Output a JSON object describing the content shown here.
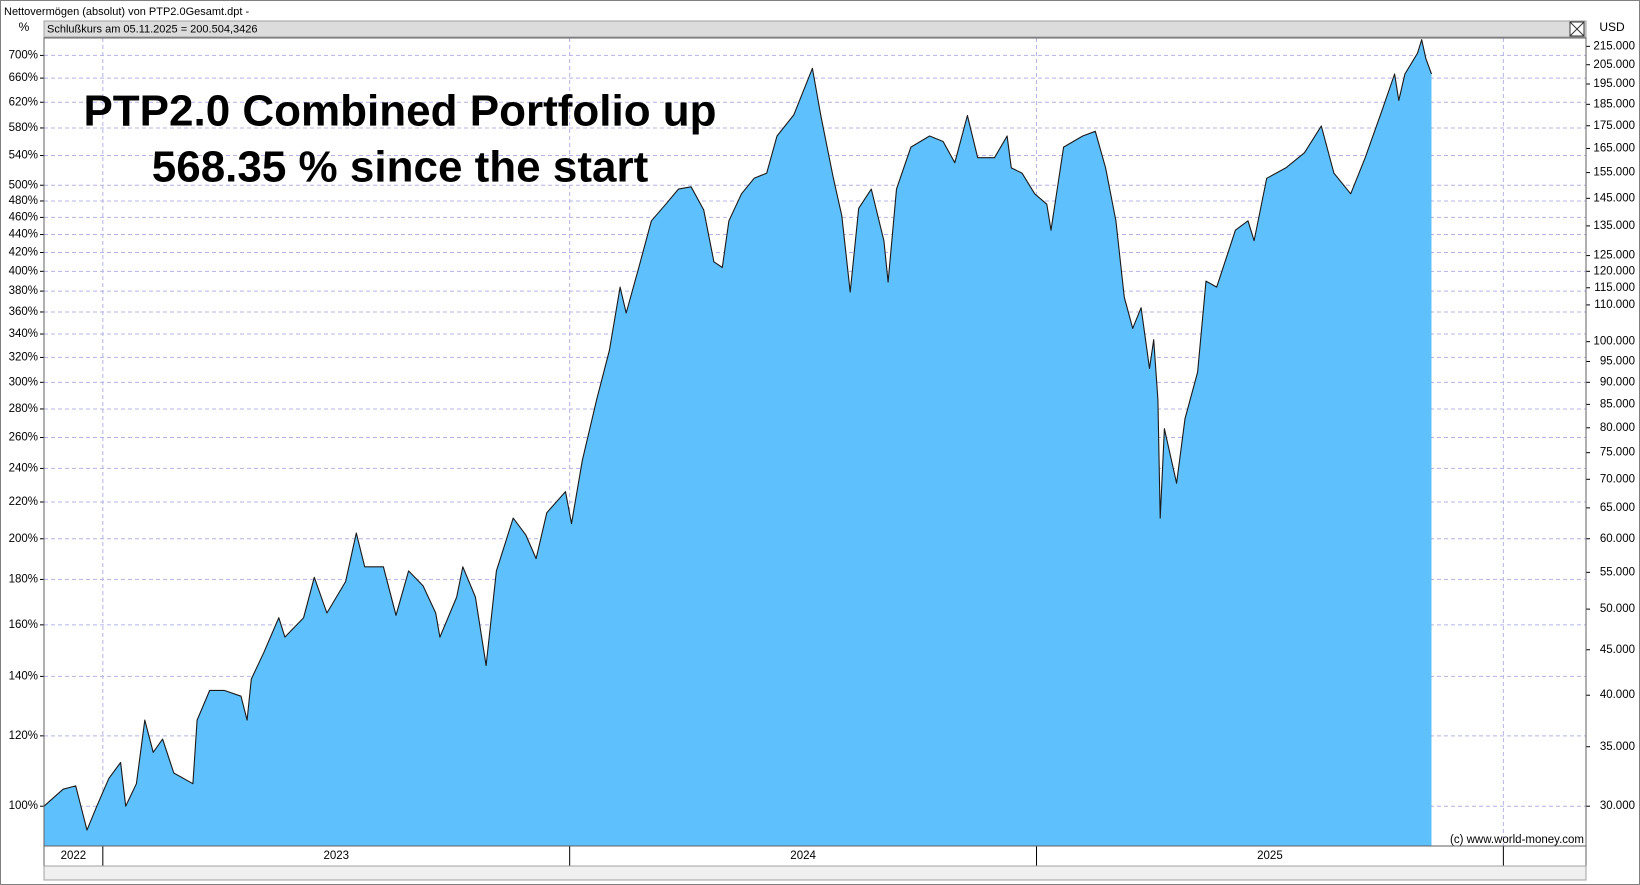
{
  "chart_data": {
    "type": "area",
    "header": "Nettovermögen (absolut) von PTP2.0Gesamt.dpt -",
    "subtitle": "Schlußkurs am 05.11.2025 = 200.504,3426",
    "title_lines": [
      "PTP2.0 Combined Portfolio up",
      "568.35 % since the start"
    ],
    "ylabel": "%",
    "y2label": "USD",
    "credit": "(c) www.world-money.com",
    "log_scale": true,
    "grid": true,
    "fill_color": "#5ec0fc",
    "line_color": "#1a1a1a",
    "xlim": [
      2022.874,
      2026.177
    ],
    "xticks": [
      2023,
      2024,
      2025,
      2026
    ],
    "year_labels": [
      "2022",
      "2023",
      "2024",
      "2025"
    ],
    "ylim": [
      90.2,
      732.3
    ],
    "yticks": [
      {
        "value": 100,
        "label": "100%"
      },
      {
        "value": 120,
        "label": "120%"
      },
      {
        "value": 140,
        "label": "140%"
      },
      {
        "value": 160,
        "label": "160%"
      },
      {
        "value": 180,
        "label": "180%"
      },
      {
        "value": 200,
        "label": "200%"
      },
      {
        "value": 220,
        "label": "220%"
      },
      {
        "value": 240,
        "label": "240%"
      },
      {
        "value": 260,
        "label": "260%"
      },
      {
        "value": 280,
        "label": "280%"
      },
      {
        "value": 300,
        "label": "300%"
      },
      {
        "value": 320,
        "label": "320%"
      },
      {
        "value": 340,
        "label": "340%"
      },
      {
        "value": 360,
        "label": "360%"
      },
      {
        "value": 380,
        "label": "380%"
      },
      {
        "value": 400,
        "label": "400%"
      },
      {
        "value": 420,
        "label": "420%"
      },
      {
        "value": 440,
        "label": "440%"
      },
      {
        "value": 460,
        "label": "460%"
      },
      {
        "value": 480,
        "label": "480%"
      },
      {
        "value": 500,
        "label": "500%"
      },
      {
        "value": 540,
        "label": "540%"
      },
      {
        "value": 580,
        "label": "580%"
      },
      {
        "value": 620,
        "label": "620%"
      },
      {
        "value": 660,
        "label": "660%"
      },
      {
        "value": 700,
        "label": "700%"
      }
    ],
    "y2lim": [
      27060,
      219700
    ],
    "y2ticks": [
      {
        "value": 30000,
        "label": "30.000"
      },
      {
        "value": 35000,
        "label": "35.000"
      },
      {
        "value": 40000,
        "label": "40.000"
      },
      {
        "value": 45000,
        "label": "45.000"
      },
      {
        "value": 50000,
        "label": "50.000"
      },
      {
        "value": 55000,
        "label": "55.000"
      },
      {
        "value": 60000,
        "label": "60.000"
      },
      {
        "value": 65000,
        "label": "65.000"
      },
      {
        "value": 70000,
        "label": "70.000"
      },
      {
        "value": 75000,
        "label": "75.000"
      },
      {
        "value": 80000,
        "label": "80.000"
      },
      {
        "value": 85000,
        "label": "85.000"
      },
      {
        "value": 90000,
        "label": "90.000"
      },
      {
        "value": 95000,
        "label": "95.000"
      },
      {
        "value": 100000,
        "label": "100.000"
      },
      {
        "value": 110000,
        "label": "110.000"
      },
      {
        "value": 115000,
        "label": "115.000"
      },
      {
        "value": 120000,
        "label": "120.000"
      },
      {
        "value": 125000,
        "label": "125.000"
      },
      {
        "value": 135000,
        "label": "135.000"
      },
      {
        "value": 145000,
        "label": "145.000"
      },
      {
        "value": 155000,
        "label": "155.000"
      },
      {
        "value": 165000,
        "label": "165.000"
      },
      {
        "value": 175000,
        "label": "175.000"
      },
      {
        "value": 185000,
        "label": "185.000"
      },
      {
        "value": 195000,
        "label": "195.000"
      },
      {
        "value": 205000,
        "label": "205.000"
      },
      {
        "value": 215000,
        "label": "215.000"
      }
    ],
    "x": [
      2022.874,
      2022.915,
      2022.942,
      2022.966,
      2022.987,
      2023.013,
      2023.038,
      2023.049,
      2023.072,
      2023.09,
      2023.108,
      2023.128,
      2023.152,
      2023.193,
      2023.202,
      2023.229,
      2023.26,
      2023.296,
      2023.309,
      2023.318,
      2023.345,
      2023.377,
      2023.39,
      2023.43,
      2023.453,
      2023.48,
      2023.52,
      2023.543,
      2023.561,
      2023.578,
      2023.601,
      2023.628,
      2023.655,
      2023.686,
      2023.713,
      2023.722,
      2023.758,
      2023.771,
      2023.798,
      2023.821,
      2023.843,
      2023.879,
      2023.906,
      2023.928,
      2023.951,
      2023.991,
      2024.004,
      2024.027,
      2024.058,
      2024.085,
      2024.108,
      2024.121,
      2024.148,
      2024.175,
      2024.206,
      2024.233,
      2024.26,
      2024.287,
      2024.309,
      2024.327,
      2024.341,
      2024.368,
      2024.395,
      2024.422,
      2024.444,
      2024.48,
      2024.52,
      2024.538,
      2024.565,
      2024.583,
      2024.601,
      2024.619,
      2024.646,
      2024.673,
      2024.682,
      2024.7,
      2024.731,
      2024.771,
      2024.8,
      2024.825,
      2024.852,
      2024.874,
      2024.91,
      2024.937,
      2024.946,
      2024.969,
      2024.996,
      2025.022,
      2025.031,
      2025.058,
      2025.099,
      2025.126,
      2025.148,
      2025.17,
      2025.188,
      2025.206,
      2025.224,
      2025.242,
      2025.251,
      2025.26,
      2025.265,
      2025.274,
      2025.3,
      2025.318,
      2025.345,
      2025.363,
      2025.386,
      2025.426,
      2025.453,
      2025.466,
      2025.493,
      2025.534,
      2025.574,
      2025.61,
      2025.637,
      2025.673,
      2025.704,
      2025.74,
      2025.767,
      2025.776,
      2025.789,
      2025.816,
      2025.825,
      2025.834,
      2025.846
    ],
    "values": [
      100,
      104.5,
      105.4,
      94,
      100,
      107.5,
      112,
      100,
      106,
      125,
      115,
      119,
      109,
      106,
      125,
      135,
      135,
      133,
      125,
      139,
      149,
      163,
      155,
      163,
      181,
      165,
      179,
      203,
      186,
      186,
      186,
      164,
      184,
      177,
      165,
      155,
      172,
      186,
      172,
      144,
      184,
      211,
      202,
      190,
      214,
      226,
      208,
      245,
      287,
      326,
      384,
      359,
      404,
      456,
      476,
      495,
      498,
      469,
      410,
      404,
      456,
      489,
      509,
      516,
      568,
      600,
      677,
      599,
      509,
      462,
      379,
      471,
      495,
      433,
      389,
      495,
      552,
      568,
      560,
      530,
      599,
      537,
      537,
      568,
      523,
      516,
      489,
      476,
      445,
      552,
      568,
      575,
      523,
      456,
      374,
      345,
      364,
      311,
      335,
      287,
      211,
      266,
      231,
      273,
      308,
      390,
      384,
      445,
      456,
      433,
      509,
      523,
      544,
      583,
      516,
      489,
      537,
      607,
      667,
      623,
      667,
      704,
      729,
      694,
      667
    ]
  }
}
